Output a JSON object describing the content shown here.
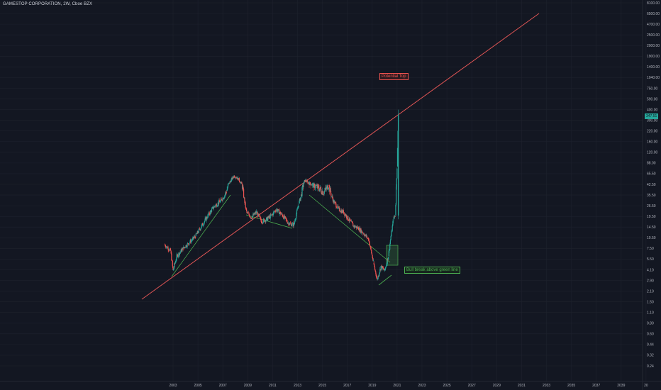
{
  "header": {
    "title": "GAMESTOP CORPORATION, 2W, Cboe BZX"
  },
  "colors": {
    "background": "#131722",
    "up": "#26a69a",
    "down": "#ef5350",
    "trendline_red": "#e05555",
    "trendline_green": "#4caf50",
    "axis_text": "#b2b5be"
  },
  "annotations": {
    "potential_top": "Potential Top",
    "bull_break": "Bull break above green line"
  },
  "chart_data": {
    "type": "line",
    "title": "GAMESTOP CORPORATION, 2W, Cboe BZX",
    "y_scale": "log",
    "ylim": [
      0.24,
      8100
    ],
    "xlim": [
      2000.5,
      2020.8
    ],
    "x_ticks": [
      "2003",
      "2005",
      "2007",
      "2009",
      "2011",
      "2013",
      "2015",
      "2017",
      "2019",
      "2021",
      "2023",
      "2025",
      "2027",
      "2029",
      "2031",
      "2033",
      "2035",
      "2037",
      "2039",
      "20"
    ],
    "y_ticks": [
      "8100.00",
      "6500.00",
      "4700.00",
      "2500.00",
      "2000.00",
      "1900.00",
      "1400.00",
      "1040.00",
      "750.00",
      "590.00",
      "400.00",
      "300.00",
      "220.00",
      "160.00",
      "120.00",
      "88.00",
      "65.50",
      "42.50",
      "35.50",
      "26.50",
      "19.50",
      "14.50",
      "10.50",
      "7.50",
      "5.50",
      "4.10",
      "2.90",
      "2.10",
      "1.50",
      "1.10",
      "0.80",
      "0.60",
      "0.44",
      "0.32",
      "0.24"
    ],
    "grid": true,
    "current_price": "347.51",
    "series": [
      {
        "x": [
          2002.3,
          2002.8,
          2003.0,
          2003.3,
          2003.8,
          2004.3,
          2004.8,
          2005.3,
          2005.8,
          2006.3,
          2006.8,
          2007.3,
          2007.6,
          2007.9,
          2008.2,
          2008.6,
          2008.9,
          2009.3,
          2009.7,
          2010.1,
          2010.5,
          2010.9,
          2011.3,
          2011.8,
          2012.3,
          2012.7,
          2013.1,
          2013.6,
          2013.9,
          2014.3,
          2014.7,
          2015.1,
          2015.5,
          2015.9,
          2016.3,
          2016.7,
          2017.1,
          2017.5,
          2017.9,
          2018.3,
          2018.7,
          2019.1,
          2019.4,
          2019.7,
          2020.0,
          2020.3,
          2020.5,
          2020.7,
          2020.85,
          2021.0,
          2021.1
        ],
        "values": [
          8.5,
          7.0,
          4.0,
          6.0,
          7.5,
          9.0,
          11.0,
          15.0,
          20.0,
          26.0,
          30.0,
          38.0,
          48.0,
          60.0,
          55.0,
          40.0,
          22.0,
          19.0,
          22.0,
          17.0,
          18.0,
          20.0,
          24.0,
          20.0,
          16.0,
          15.5,
          28.0,
          50.0,
          45.0,
          42.0,
          40.0,
          37.0,
          42.0,
          30.0,
          24.0,
          22.0,
          18.0,
          15.0,
          14.0,
          12.0,
          10.0,
          5.0,
          3.0,
          4.5,
          4.0,
          6.0,
          11.0,
          18.0,
          20.0,
          80.0,
          347.51
        ]
      }
    ]
  }
}
